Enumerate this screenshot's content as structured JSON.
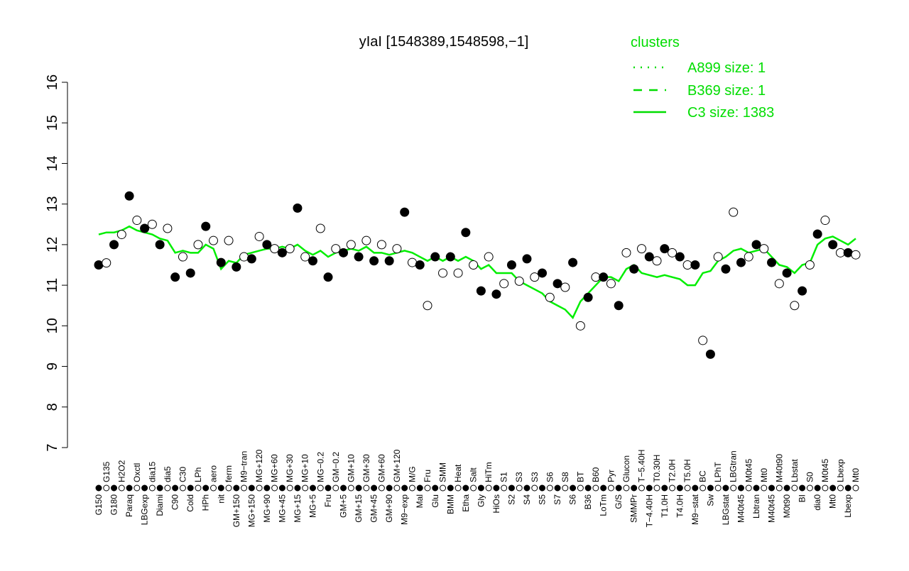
{
  "chart_data": {
    "type": "scatter",
    "title": "yIaI [1548389,1548598,−1]",
    "xlabel": "",
    "ylabel": "",
    "ylim": [
      7,
      16
    ],
    "yticks": [
      7,
      8,
      9,
      10,
      11,
      12,
      13,
      14,
      15,
      16
    ],
    "grid": false,
    "legend": {
      "title": "clusters",
      "placement": "top-right",
      "entries": [
        {
          "label": "A899 size: 1",
          "style": "dotted"
        },
        {
          "label": "B369 size: 1",
          "style": "dashed"
        },
        {
          "label": "C3 size: 1383",
          "style": "solid"
        }
      ]
    },
    "colors": {
      "line": "#00ee00",
      "legend": "#00dd00",
      "point_fill": "#000000",
      "point_open": "#ffffff"
    },
    "categories": [
      "G150",
      "G135",
      "G180",
      "H2O2",
      "Paraq",
      "Oxctl",
      "LBGexp",
      "dia15",
      "Diami",
      "dia5",
      "C90",
      "C30",
      "Cold",
      "LPh",
      "HPh",
      "aero",
      "nit",
      "ferm",
      "GM+150",
      "M9−tran",
      "MG+150",
      "MG+120",
      "MG+90",
      "MG+60",
      "MG+45",
      "MG+30",
      "MG+15",
      "MG+10",
      "MG+5",
      "MG−0.2",
      "Fru",
      "GM−0.2",
      "GM+5",
      "GM+10",
      "GM+15",
      "GM+30",
      "GM+45",
      "GM+60",
      "GM+90",
      "GM+120",
      "M9−exp",
      "M/G",
      "Mal",
      "Fru",
      "Glu",
      "SMM",
      "BMM",
      "Heat",
      "Etha",
      "Salt",
      "Gly",
      "HiTm",
      "HiOs",
      "S1",
      "S2",
      "S3",
      "S4",
      "S3",
      "S5",
      "S6",
      "S7",
      "S8",
      "S6",
      "BT",
      "B36",
      "B60",
      "LoTm",
      "Pyr",
      "G/S",
      "Glucon",
      "SMMPr",
      "T−5.40H",
      "T−4.40H",
      "T0.30H",
      "T1.0H",
      "T2.0H",
      "T4.0H",
      "T5.0H",
      "M9−stat",
      "BC",
      "Sw",
      "LPhT",
      "LBGstat",
      "LBGtran",
      "M40t45",
      "M0t45",
      "Lbtran",
      "Mt0",
      "M40t45",
      "M40t90",
      "M0t90",
      "Lbstat",
      "BI",
      "S0",
      "dia0",
      "M0t45",
      "Mt0",
      "Lbexp",
      "Lbexp",
      "Mt0"
    ],
    "values": [
      11.5,
      11.55,
      12.0,
      12.25,
      13.2,
      12.6,
      12.4,
      12.5,
      12.0,
      12.4,
      11.2,
      11.7,
      11.3,
      12.0,
      12.45,
      12.1,
      11.56,
      12.1,
      11.45,
      11.7,
      11.65,
      12.2,
      12.0,
      11.9,
      11.8,
      11.9,
      12.9,
      11.7,
      11.6,
      12.4,
      11.2,
      11.9,
      11.8,
      12.0,
      11.7,
      12.1,
      11.6,
      12.0,
      11.6,
      11.9,
      12.8,
      11.56,
      11.5,
      10.5,
      11.7,
      11.3,
      11.7,
      11.3,
      12.3,
      11.5,
      10.86,
      11.7,
      10.78,
      11.04,
      11.5,
      11.1,
      11.65,
      11.2,
      11.3,
      10.7,
      11.04,
      10.95,
      11.56,
      10.0,
      10.7,
      11.2,
      11.2,
      11.04,
      10.5,
      11.8,
      11.4,
      11.9,
      11.7,
      11.6,
      11.9,
      11.8,
      11.7,
      11.5,
      11.5,
      9.64,
      9.3,
      11.7,
      11.4,
      12.8,
      11.56,
      11.7,
      12.0,
      11.9,
      11.56,
      11.04,
      11.3,
      10.5,
      10.86,
      11.5,
      12.26,
      12.6,
      12.0,
      11.8,
      11.8,
      11.75
    ],
    "trend": [
      12.25,
      12.3,
      12.3,
      12.35,
      12.45,
      12.35,
      12.3,
      12.25,
      12.15,
      12.1,
      11.8,
      11.85,
      11.8,
      11.8,
      12.0,
      11.9,
      11.4,
      11.6,
      11.55,
      11.75,
      11.8,
      11.85,
      11.9,
      11.9,
      11.95,
      11.9,
      12.0,
      11.85,
      11.75,
      11.85,
      11.7,
      11.8,
      11.85,
      11.9,
      11.85,
      11.95,
      11.8,
      11.8,
      11.75,
      11.8,
      11.85,
      11.8,
      11.7,
      11.6,
      11.7,
      11.6,
      11.7,
      11.6,
      11.7,
      11.6,
      11.4,
      11.5,
      11.3,
      11.3,
      11.3,
      11.1,
      11.0,
      10.9,
      10.8,
      10.6,
      10.5,
      10.4,
      10.2,
      10.6,
      10.8,
      11.0,
      11.2,
      11.2,
      11.1,
      11.4,
      11.5,
      11.3,
      11.25,
      11.2,
      11.25,
      11.2,
      11.15,
      11.0,
      11.0,
      11.3,
      11.35,
      11.6,
      11.7,
      11.85,
      11.9,
      11.8,
      11.85,
      11.9,
      11.7,
      11.5,
      11.45,
      11.3,
      11.5,
      11.55,
      12.0,
      12.15,
      12.2,
      12.1,
      12.0,
      12.15
    ]
  }
}
